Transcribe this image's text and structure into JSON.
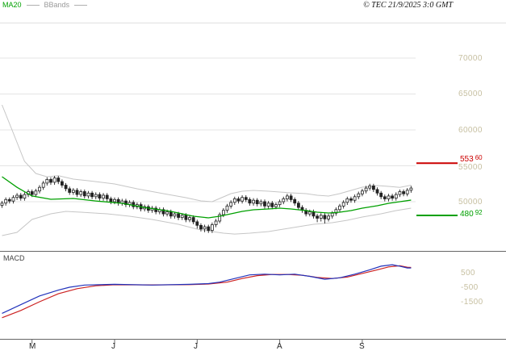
{
  "header": {
    "legend": [
      {
        "label": "MA20",
        "color": "#00a000"
      },
      {
        "label": "BBands",
        "color": "#999999"
      }
    ],
    "copyright": "© TEC 21/9/2025 3:0 GMT"
  },
  "price_axis": {
    "labels": [
      "70000",
      "65000",
      "60000",
      "55000",
      "50000"
    ]
  },
  "levels": {
    "upper": {
      "int": "553",
      "dec": "60",
      "color": "#cc0000"
    },
    "lower": {
      "int": "480",
      "dec": "92",
      "color": "#00a000"
    }
  },
  "macd_panel": {
    "title": "MACD",
    "axis_labels": [
      "500",
      "-500",
      "-1500"
    ]
  },
  "x_axis": {
    "labels": [
      "M",
      "J",
      "J",
      "A",
      "S"
    ]
  },
  "chart_data": {
    "type": "candlestick",
    "title": "",
    "price_axis_ticks": [
      50000,
      55000,
      60000,
      65000,
      70000
    ],
    "x_ticks": [
      {
        "label": "M",
        "i": 8
      },
      {
        "label": "J",
        "i": 30
      },
      {
        "label": "J",
        "i": 52
      },
      {
        "label": "A",
        "i": 74
      },
      {
        "label": "S",
        "i": 96
      }
    ],
    "levels": [
      {
        "name": "resistance",
        "value": 55360,
        "color": "#cc0000"
      },
      {
        "name": "support",
        "value": 48092,
        "color": "#00a000"
      }
    ],
    "candles": [
      [
        49500,
        50100,
        49150,
        49800
      ],
      [
        49800,
        50600,
        49450,
        50300
      ],
      [
        50300,
        50600,
        49750,
        50100
      ],
      [
        50100,
        50900,
        49750,
        50600
      ],
      [
        50600,
        51200,
        50250,
        50900
      ],
      [
        50900,
        51200,
        50150,
        50500
      ],
      [
        50500,
        51300,
        50150,
        51000
      ],
      [
        51000,
        51700,
        50650,
        51400
      ],
      [
        51400,
        51700,
        50650,
        51000
      ],
      [
        51000,
        51800,
        50650,
        51500
      ],
      [
        51500,
        52300,
        51150,
        52000
      ],
      [
        52000,
        52900,
        51650,
        52600
      ],
      [
        52600,
        53400,
        52250,
        53100
      ],
      [
        53100,
        53400,
        52350,
        52700
      ],
      [
        52700,
        53600,
        52350,
        53300
      ],
      [
        53300,
        53600,
        52450,
        52800
      ],
      [
        52800,
        53100,
        51950,
        52300
      ],
      [
        52300,
        52600,
        51450,
        51800
      ],
      [
        51800,
        52100,
        50950,
        51300
      ],
      [
        51300,
        51900,
        50950,
        51600
      ],
      [
        51600,
        51900,
        50650,
        51000
      ],
      [
        51000,
        51700,
        50650,
        51400
      ],
      [
        51400,
        51700,
        50450,
        50800
      ],
      [
        50800,
        51500,
        50450,
        51200
      ],
      [
        51200,
        51500,
        50350,
        50700
      ],
      [
        50700,
        51300,
        50350,
        51000
      ],
      [
        51000,
        51300,
        50150,
        50500
      ],
      [
        50500,
        51200,
        50150,
        50900
      ],
      [
        50900,
        51200,
        50050,
        50400
      ],
      [
        50400,
        50700,
        49650,
        50000
      ],
      [
        50000,
        50600,
        49650,
        50300
      ],
      [
        50300,
        50600,
        49450,
        49800
      ],
      [
        49800,
        50400,
        49450,
        50100
      ],
      [
        50100,
        50400,
        49250,
        49600
      ],
      [
        49600,
        50200,
        49250,
        49900
      ],
      [
        49900,
        50200,
        48950,
        49300
      ],
      [
        49300,
        49900,
        48950,
        49600
      ],
      [
        49600,
        49900,
        48650,
        49000
      ],
      [
        49000,
        49600,
        48650,
        49300
      ],
      [
        49300,
        49600,
        48450,
        48800
      ],
      [
        48800,
        49400,
        48450,
        49100
      ],
      [
        49100,
        49400,
        48250,
        48600
      ],
      [
        48600,
        49200,
        48250,
        48900
      ],
      [
        48900,
        49200,
        47950,
        48300
      ],
      [
        48300,
        48900,
        47950,
        48600
      ],
      [
        48600,
        48900,
        47650,
        48000
      ],
      [
        48000,
        48600,
        47650,
        48300
      ],
      [
        48300,
        48600,
        47450,
        47800
      ],
      [
        47800,
        48400,
        47450,
        48100
      ],
      [
        48100,
        48400,
        47150,
        47500
      ],
      [
        47500,
        48100,
        47150,
        47800
      ],
      [
        47800,
        48100,
        46850,
        47200
      ],
      [
        47200,
        47500,
        46250,
        46700
      ],
      [
        46700,
        47000,
        45850,
        46200
      ],
      [
        46200,
        46800,
        45750,
        46500
      ],
      [
        46500,
        46800,
        45650,
        46000
      ],
      [
        46000,
        47100,
        45650,
        46800
      ],
      [
        46800,
        47600,
        46450,
        47300
      ],
      [
        47300,
        48500,
        47000,
        48200
      ],
      [
        48200,
        49100,
        47850,
        48800
      ],
      [
        48800,
        49700,
        48450,
        49400
      ],
      [
        49400,
        50200,
        49050,
        49900
      ],
      [
        49900,
        50700,
        49550,
        50400
      ],
      [
        50400,
        50700,
        49750,
        50100
      ],
      [
        50100,
        50900,
        49750,
        50600
      ],
      [
        50600,
        50900,
        49950,
        50300
      ],
      [
        50300,
        50600,
        49450,
        49800
      ],
      [
        49800,
        50500,
        49450,
        50200
      ],
      [
        50200,
        50500,
        49350,
        49700
      ],
      [
        49700,
        50300,
        49350,
        50000
      ],
      [
        50000,
        50300,
        49050,
        49400
      ],
      [
        49400,
        50100,
        49050,
        49800
      ],
      [
        49800,
        50100,
        48950,
        49300
      ],
      [
        49300,
        49900,
        48950,
        49600
      ],
      [
        49600,
        50300,
        49250,
        50000
      ],
      [
        50000,
        50700,
        49650,
        50400
      ],
      [
        50400,
        51100,
        50050,
        50800
      ],
      [
        50800,
        51100,
        49950,
        50300
      ],
      [
        50300,
        50600,
        49450,
        49800
      ],
      [
        49800,
        50100,
        48850,
        49200
      ],
      [
        49200,
        49500,
        48450,
        48800
      ],
      [
        48800,
        49100,
        47950,
        48300
      ],
      [
        48300,
        48900,
        47950,
        48600
      ],
      [
        48600,
        48900,
        47650,
        48000
      ],
      [
        48000,
        48300,
        47150,
        47700
      ],
      [
        47700,
        48400,
        47250,
        48100
      ],
      [
        48100,
        48400,
        46950,
        47600
      ],
      [
        47600,
        48300,
        47250,
        48000
      ],
      [
        48000,
        48700,
        47650,
        48400
      ],
      [
        48400,
        49200,
        48050,
        48900
      ],
      [
        48900,
        49700,
        48550,
        49400
      ],
      [
        49400,
        50200,
        49050,
        49900
      ],
      [
        49900,
        50700,
        49550,
        50400
      ],
      [
        50400,
        50700,
        49850,
        50200
      ],
      [
        50200,
        51000,
        49850,
        50700
      ],
      [
        50700,
        51400,
        50350,
        51100
      ],
      [
        51100,
        51800,
        50750,
        51500
      ],
      [
        51500,
        52200,
        51150,
        51900
      ],
      [
        51900,
        52500,
        51550,
        52200
      ],
      [
        52200,
        52500,
        51350,
        51700
      ],
      [
        51700,
        52000,
        50850,
        51200
      ],
      [
        51200,
        51500,
        50350,
        50700
      ],
      [
        50700,
        51000,
        50050,
        50400
      ],
      [
        50400,
        51100,
        50050,
        50800
      ],
      [
        50800,
        51100,
        50150,
        50500
      ],
      [
        50500,
        51300,
        50150,
        51000
      ],
      [
        51000,
        51700,
        50650,
        51400
      ],
      [
        51400,
        51700,
        50750,
        51100
      ],
      [
        51100,
        51900,
        50750,
        51600
      ],
      [
        51600,
        52200,
        51250,
        51900
      ]
    ],
    "overlays": {
      "ma20": [
        [
          0,
          53480
        ],
        [
          4,
          52000
        ],
        [
          8,
          50800
        ],
        [
          13,
          50340
        ],
        [
          19,
          50450
        ],
        [
          25,
          50100
        ],
        [
          32,
          49780
        ],
        [
          38,
          49200
        ],
        [
          45,
          48650
        ],
        [
          51,
          47980
        ],
        [
          55,
          47750
        ],
        [
          58,
          47980
        ],
        [
          61,
          48310
        ],
        [
          64,
          48650
        ],
        [
          67,
          48880
        ],
        [
          71,
          48990
        ],
        [
          74,
          49100
        ],
        [
          77,
          48990
        ],
        [
          81,
          48760
        ],
        [
          84,
          48540
        ],
        [
          87,
          48430
        ],
        [
          90,
          48540
        ],
        [
          93,
          48760
        ],
        [
          96,
          49100
        ],
        [
          100,
          49440
        ],
        [
          103,
          49780
        ],
        [
          106,
          50000
        ],
        [
          109,
          50220
        ]
      ],
      "bb_upper": [
        [
          0,
          63480
        ],
        [
          3,
          59550
        ],
        [
          6,
          55620
        ],
        [
          9,
          53930
        ],
        [
          12,
          53470
        ],
        [
          15,
          53620
        ],
        [
          19,
          53150
        ],
        [
          23,
          52920
        ],
        [
          30,
          52470
        ],
        [
          36,
          51800
        ],
        [
          43,
          51120
        ],
        [
          49,
          50560
        ],
        [
          53,
          50110
        ],
        [
          56,
          50000
        ],
        [
          58,
          50450
        ],
        [
          61,
          51120
        ],
        [
          64,
          51460
        ],
        [
          67,
          51570
        ],
        [
          71,
          51460
        ],
        [
          74,
          51350
        ],
        [
          77,
          51240
        ],
        [
          81,
          51120
        ],
        [
          84,
          50900
        ],
        [
          87,
          50790
        ],
        [
          90,
          51120
        ],
        [
          93,
          51570
        ],
        [
          96,
          52020
        ],
        [
          100,
          52250
        ],
        [
          103,
          52130
        ],
        [
          106,
          52000
        ],
        [
          109,
          52300
        ]
      ],
      "bb_lower": [
        [
          0,
          45280
        ],
        [
          4,
          45730
        ],
        [
          8,
          47530
        ],
        [
          13,
          48310
        ],
        [
          17,
          48650
        ],
        [
          21,
          48540
        ],
        [
          28,
          48310
        ],
        [
          34,
          47980
        ],
        [
          40,
          47530
        ],
        [
          47,
          46850
        ],
        [
          52,
          46180
        ],
        [
          56,
          45840
        ],
        [
          59,
          45620
        ],
        [
          62,
          45500
        ],
        [
          66,
          45620
        ],
        [
          71,
          45840
        ],
        [
          75,
          46180
        ],
        [
          79,
          46520
        ],
        [
          83,
          46850
        ],
        [
          88,
          47080
        ],
        [
          92,
          47420
        ],
        [
          96,
          47870
        ],
        [
          101,
          48310
        ],
        [
          105,
          48760
        ],
        [
          109,
          49100
        ]
      ]
    },
    "macd": {
      "axis_values": [
        500,
        -500,
        -1500
      ],
      "macd_line": [
        [
          0,
          -2300
        ],
        [
          5,
          -1700
        ],
        [
          10,
          -1100
        ],
        [
          15,
          -700
        ],
        [
          18,
          -500
        ],
        [
          22,
          -350
        ],
        [
          30,
          -300
        ],
        [
          40,
          -350
        ],
        [
          50,
          -300
        ],
        [
          55,
          -250
        ],
        [
          58,
          -150
        ],
        [
          62,
          100
        ],
        [
          66,
          350
        ],
        [
          70,
          400
        ],
        [
          74,
          350
        ],
        [
          78,
          400
        ],
        [
          82,
          250
        ],
        [
          86,
          50
        ],
        [
          90,
          150
        ],
        [
          94,
          400
        ],
        [
          98,
          700
        ],
        [
          101,
          950
        ],
        [
          104,
          1050
        ],
        [
          106,
          950
        ],
        [
          108,
          830
        ],
        [
          109,
          830
        ]
      ],
      "signal_line": [
        [
          0,
          -2600
        ],
        [
          5,
          -2100
        ],
        [
          10,
          -1500
        ],
        [
          15,
          -950
        ],
        [
          20,
          -600
        ],
        [
          25,
          -400
        ],
        [
          30,
          -330
        ],
        [
          40,
          -340
        ],
        [
          50,
          -320
        ],
        [
          55,
          -280
        ],
        [
          60,
          -150
        ],
        [
          64,
          100
        ],
        [
          68,
          300
        ],
        [
          72,
          380
        ],
        [
          76,
          380
        ],
        [
          80,
          330
        ],
        [
          84,
          180
        ],
        [
          88,
          100
        ],
        [
          92,
          200
        ],
        [
          96,
          450
        ],
        [
          100,
          700
        ],
        [
          103,
          900
        ],
        [
          106,
          980
        ],
        [
          108,
          880
        ],
        [
          109,
          860
        ]
      ]
    }
  }
}
